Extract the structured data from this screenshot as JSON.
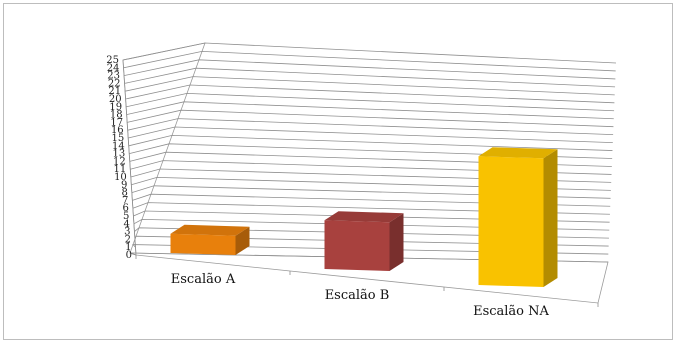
{
  "chart_data": {
    "type": "bar",
    "categories": [
      "Escalão A",
      "Escalão B",
      "Escalão NA"
    ],
    "values": [
      2,
      5,
      13
    ],
    "colors": [
      "#e8800c",
      "#a8413e",
      "#f9c200"
    ],
    "ylim": [
      0,
      25
    ],
    "yticks": [
      0,
      1,
      2,
      3,
      4,
      5,
      6,
      7,
      8,
      9,
      10,
      11,
      12,
      13,
      14,
      15,
      16,
      17,
      18,
      19,
      20,
      21,
      22,
      23,
      24,
      25
    ],
    "title": "",
    "xlabel": "",
    "ylabel": "",
    "grid": true,
    "legend": "none",
    "style": "3d-perspective"
  }
}
